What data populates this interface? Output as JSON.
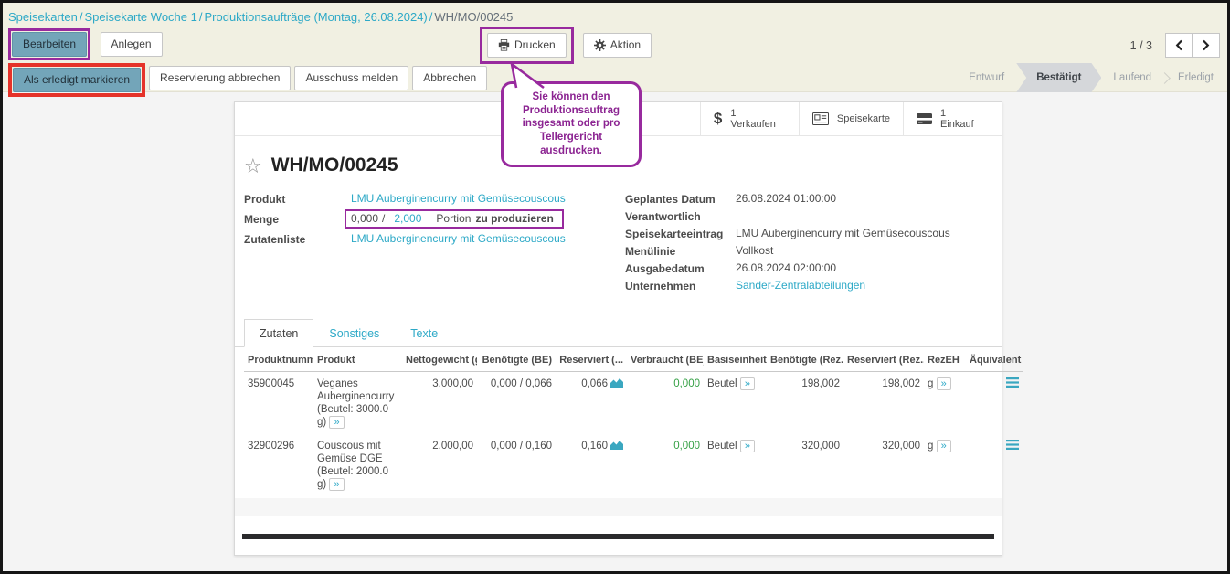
{
  "colors": {
    "link": "#2da9c7",
    "primary_button": "#73a5b9",
    "annotation_purple": "#982a9e",
    "annotation_red": "#e5332a",
    "positive_green": "#35a045",
    "statusbar_active": "#d5d7da",
    "topbar_beige": "#f1f0e2",
    "black_bar": "#2a2a2c"
  },
  "breadcrumb": {
    "separator": "/",
    "items": [
      "Speisekarten",
      "Speisekarte Woche 1",
      "Produktionsaufträge (Montag, 26.08.2024)",
      "WH/MO/00245"
    ]
  },
  "control_bar": {
    "edit_label": "Bearbeiten",
    "create_label": "Anlegen",
    "print_label": "Drucken",
    "action_label": "Aktion",
    "pager_text": "1 / 3",
    "icons": {
      "print": "printer-icon",
      "action": "gear-icon",
      "prev": "chevron-left-icon",
      "next": "chevron-right-icon"
    }
  },
  "action_bar": {
    "buttons": [
      "Als erledigt markieren",
      "Reservierung abbrechen",
      "Ausschuss melden",
      "Abbrechen"
    ],
    "statusbar": [
      {
        "label": "Entwurf",
        "active": false
      },
      {
        "label": "Bestätigt",
        "active": true
      },
      {
        "label": "Laufend",
        "active": false
      },
      {
        "label": "Erledigt",
        "active": false
      }
    ]
  },
  "tooltip": {
    "text": "Sie können den Produktionsauftrag insgesamt oder pro Tellergericht ausdrucken."
  },
  "form": {
    "title": "WH/MO/00245",
    "favorite_icon": "star-icon",
    "stat_buttons": [
      {
        "icon": "dollar-icon",
        "count": "1",
        "label": "Verkaufen"
      },
      {
        "icon": "menu-card-icon",
        "count": "",
        "label": "Speisekarte"
      },
      {
        "icon": "credit-card-icon",
        "count": "1",
        "label": "Einkauf"
      }
    ],
    "produkt": {
      "label": "Produkt",
      "value": "LMU Auberginencurry mit Gemüsecouscous"
    },
    "menge": {
      "label": "Menge",
      "done": "0,000",
      "separator": "/",
      "planned": "2,000",
      "uom": "Portion",
      "note": "zu produzieren"
    },
    "zutatenliste": {
      "label": "Zutatenliste",
      "value": "LMU Auberginencurry mit Gemüsecouscous"
    },
    "right_fields": [
      {
        "label": "Geplantes Datum",
        "value": "26.08.2024 01:00:00",
        "link": false
      },
      {
        "label": "Verantwortlich",
        "value": "",
        "link": false
      },
      {
        "label": "Speisekarteeintrag",
        "value": "LMU Auberginencurry mit Gemüsecouscous",
        "link": false
      },
      {
        "label": "Menülinie",
        "value": "Vollkost",
        "link": false
      },
      {
        "label": "Ausgabedatum",
        "value": "26.08.2024 02:00:00",
        "link": false
      },
      {
        "label": "Unternehmen",
        "value": "Sander-Zentralabteilungen",
        "link": true
      }
    ],
    "tabs": [
      {
        "label": "Zutaten",
        "active": true
      },
      {
        "label": "Sonstiges",
        "active": false
      },
      {
        "label": "Texte",
        "active": false
      }
    ],
    "table": {
      "headers": [
        "Produktnumm...",
        "Produkt",
        "Nettogewicht (g)",
        "Benötigte (BE)",
        "Reserviert (...",
        "Verbraucht (BE)",
        "Basiseinheit",
        "Benötigte (Rez...",
        "Reserviert (Rez...",
        "RezEH",
        "Äquivalent zu"
      ],
      "row_icons": {
        "reserved": "area-chart-icon",
        "unit_link": "double-chevron-icon",
        "equivalent": "list-icon"
      },
      "rows": [
        {
          "produktnummer": "35900045",
          "produkt": "Veganes Auberginencurry (Beutel: 3000.0 g)",
          "nettogewicht": "3.000,00",
          "benoetigte_be": "0,000 / 0,066",
          "reserviert": "0,066",
          "verbraucht": "0,000",
          "basiseinheit": "Beutel",
          "benoetigte_rez": "198,002",
          "reserviert_rez": "198,002",
          "rezeh": "g"
        },
        {
          "produktnummer": "32900296",
          "produkt": "Couscous mit Gemüse DGE (Beutel: 2000.0 g)",
          "nettogewicht": "2.000,00",
          "benoetigte_be": "0,000 / 0,160",
          "reserviert": "0,160",
          "verbraucht": "0,000",
          "basiseinheit": "Beutel",
          "benoetigte_rez": "320,000",
          "reserviert_rez": "320,000",
          "rezeh": "g"
        }
      ]
    }
  }
}
